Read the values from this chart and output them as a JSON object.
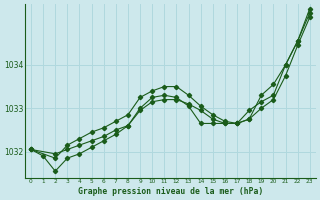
{
  "xlabel": "Graphe pression niveau de la mer (hPa)",
  "background_color": "#cde8ec",
  "grid_color": "#b0d8de",
  "line_color": "#1a5c1a",
  "ylim": [
    1031.4,
    1035.4
  ],
  "xlim": [
    -0.5,
    23.5
  ],
  "yticks": [
    1032,
    1033,
    1034
  ],
  "xticks": [
    0,
    1,
    2,
    3,
    4,
    5,
    6,
    7,
    8,
    9,
    10,
    11,
    12,
    13,
    14,
    15,
    16,
    17,
    18,
    19,
    20,
    21,
    22,
    23
  ],
  "series": [
    {
      "x": [
        0,
        2,
        3,
        4,
        5,
        6,
        7,
        8,
        9,
        10,
        11,
        12,
        13,
        14,
        15,
        16,
        17,
        18,
        19,
        20,
        21,
        22,
        23
      ],
      "y": [
        1032.05,
        1031.85,
        1032.15,
        1032.3,
        1032.45,
        1032.55,
        1032.7,
        1032.85,
        1033.25,
        1033.4,
        1033.5,
        1033.5,
        1033.3,
        1033.05,
        1032.85,
        1032.7,
        1032.65,
        1032.75,
        1033.3,
        1033.55,
        1034.0,
        1034.55,
        1035.2
      ]
    },
    {
      "x": [
        0,
        1,
        2,
        3,
        4,
        5,
        6,
        7,
        8,
        9,
        10,
        11,
        12,
        13,
        14,
        15,
        16,
        17,
        18,
        19,
        20,
        21,
        22,
        23
      ],
      "y": [
        1032.05,
        1031.9,
        1031.55,
        1031.85,
        1031.95,
        1032.1,
        1032.25,
        1032.4,
        1032.6,
        1033.0,
        1033.25,
        1033.3,
        1033.25,
        1033.05,
        1032.65,
        1032.65,
        1032.65,
        1032.65,
        1032.95,
        1033.15,
        1033.3,
        1034.0,
        1034.55,
        1035.3
      ]
    },
    {
      "x": [
        0,
        2,
        3,
        4,
        5,
        6,
        7,
        8,
        9,
        10,
        11,
        12,
        13,
        14,
        15,
        16,
        17,
        18,
        19,
        20,
        21,
        22,
        23
      ],
      "y": [
        1032.05,
        1031.95,
        1032.05,
        1032.15,
        1032.25,
        1032.35,
        1032.5,
        1032.6,
        1032.95,
        1033.15,
        1033.2,
        1033.2,
        1033.1,
        1032.95,
        1032.75,
        1032.65,
        1032.65,
        1032.75,
        1033.0,
        1033.2,
        1033.75,
        1034.45,
        1035.1
      ]
    }
  ]
}
